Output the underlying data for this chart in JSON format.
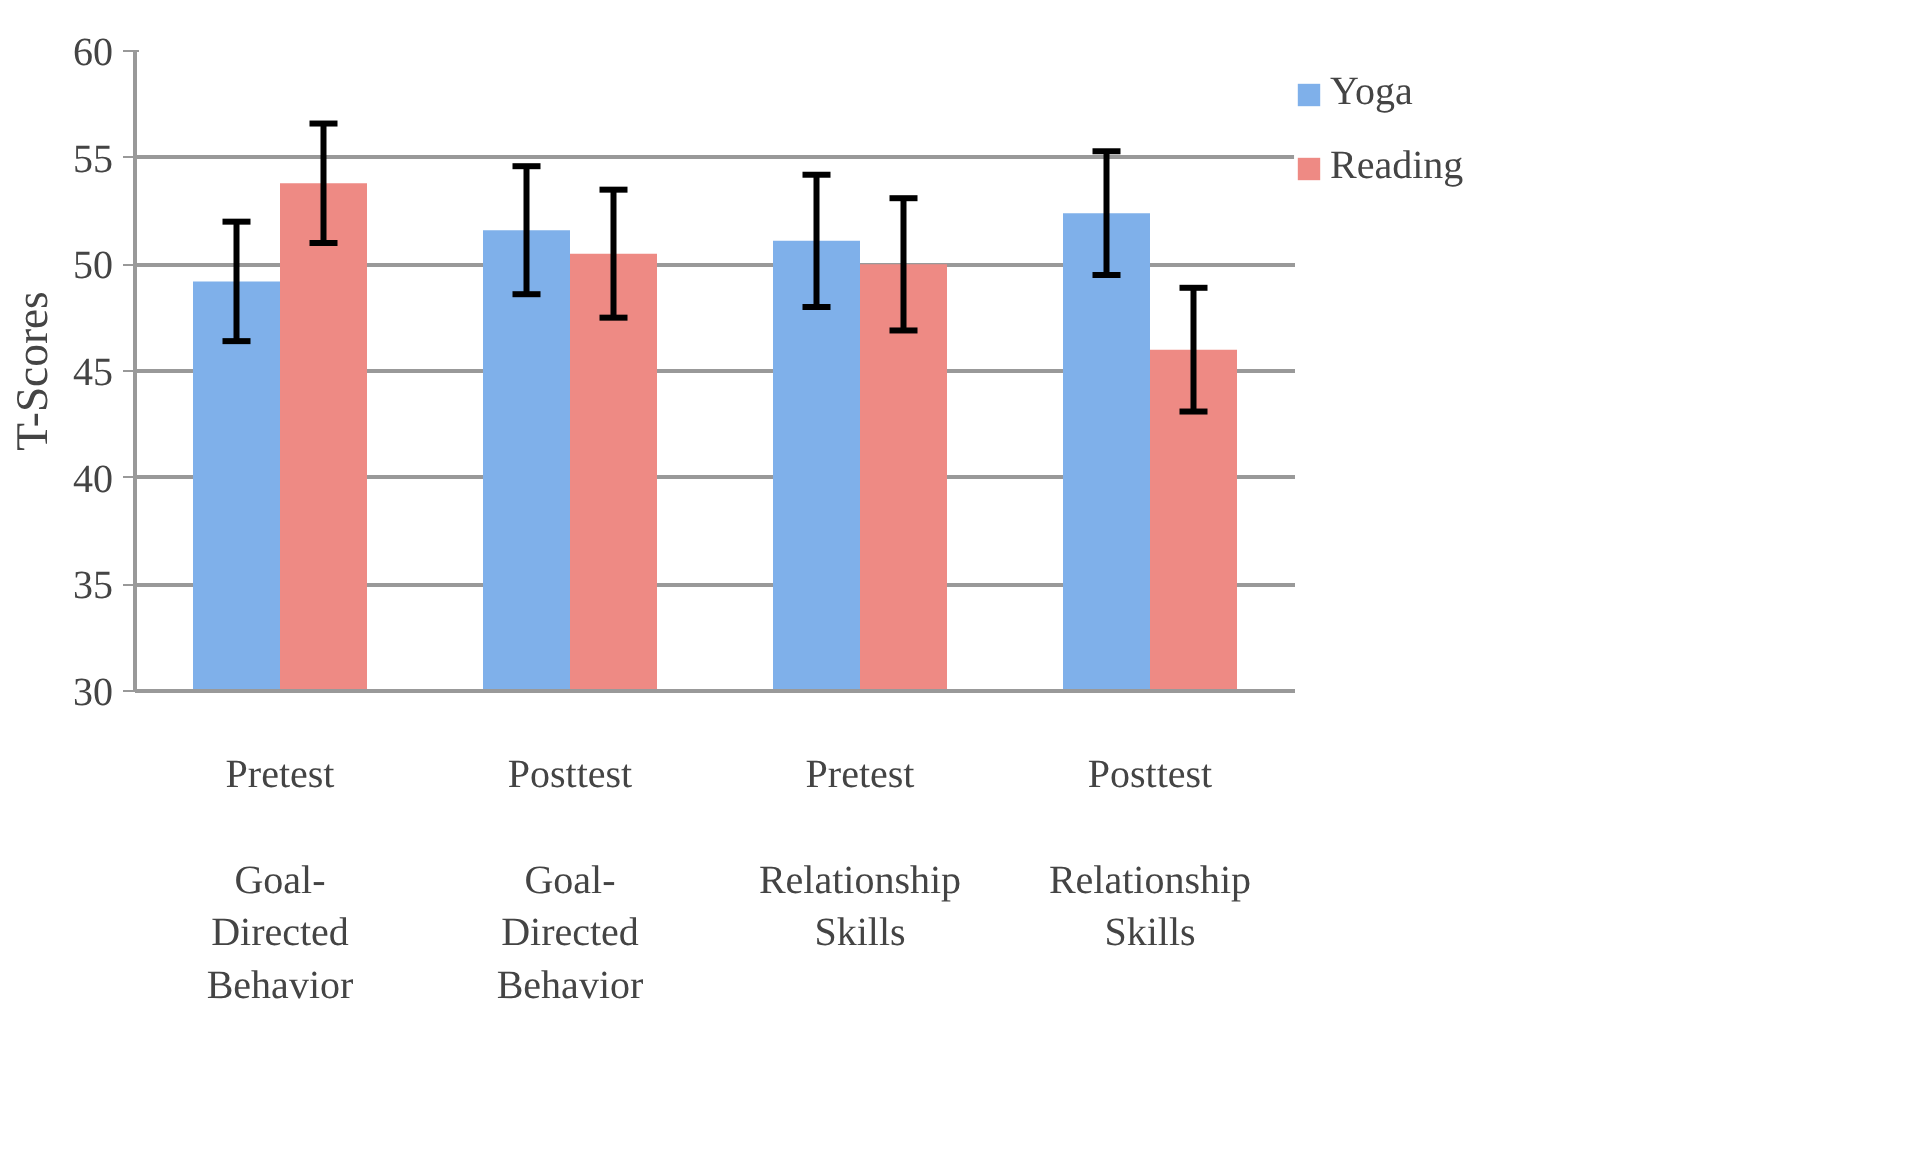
{
  "chart_data": {
    "type": "bar",
    "ylabel": "T-Scores",
    "categories": [
      "Pretest\nGoal-Directed Behavior",
      "Posttest\nGoal-Directed Behavior",
      "Pretest\nRelationship Skills",
      "Posttest\nRelationship Skills"
    ],
    "series": [
      {
        "name": "Yoga",
        "color": "#7fb0ea",
        "values": [
          49.2,
          51.6,
          51.1,
          52.4
        ],
        "errors": [
          2.8,
          3.0,
          3.1,
          2.9
        ]
      },
      {
        "name": "Reading",
        "color": "#ee8a84",
        "values": [
          53.8,
          50.5,
          50.0,
          46.0
        ],
        "errors": [
          2.8,
          3.0,
          3.1,
          2.9
        ]
      }
    ],
    "ylim": [
      30,
      60
    ],
    "yticks": [
      30,
      35,
      40,
      45,
      50,
      55,
      60
    ],
    "grid": "y",
    "legend": "right"
  }
}
